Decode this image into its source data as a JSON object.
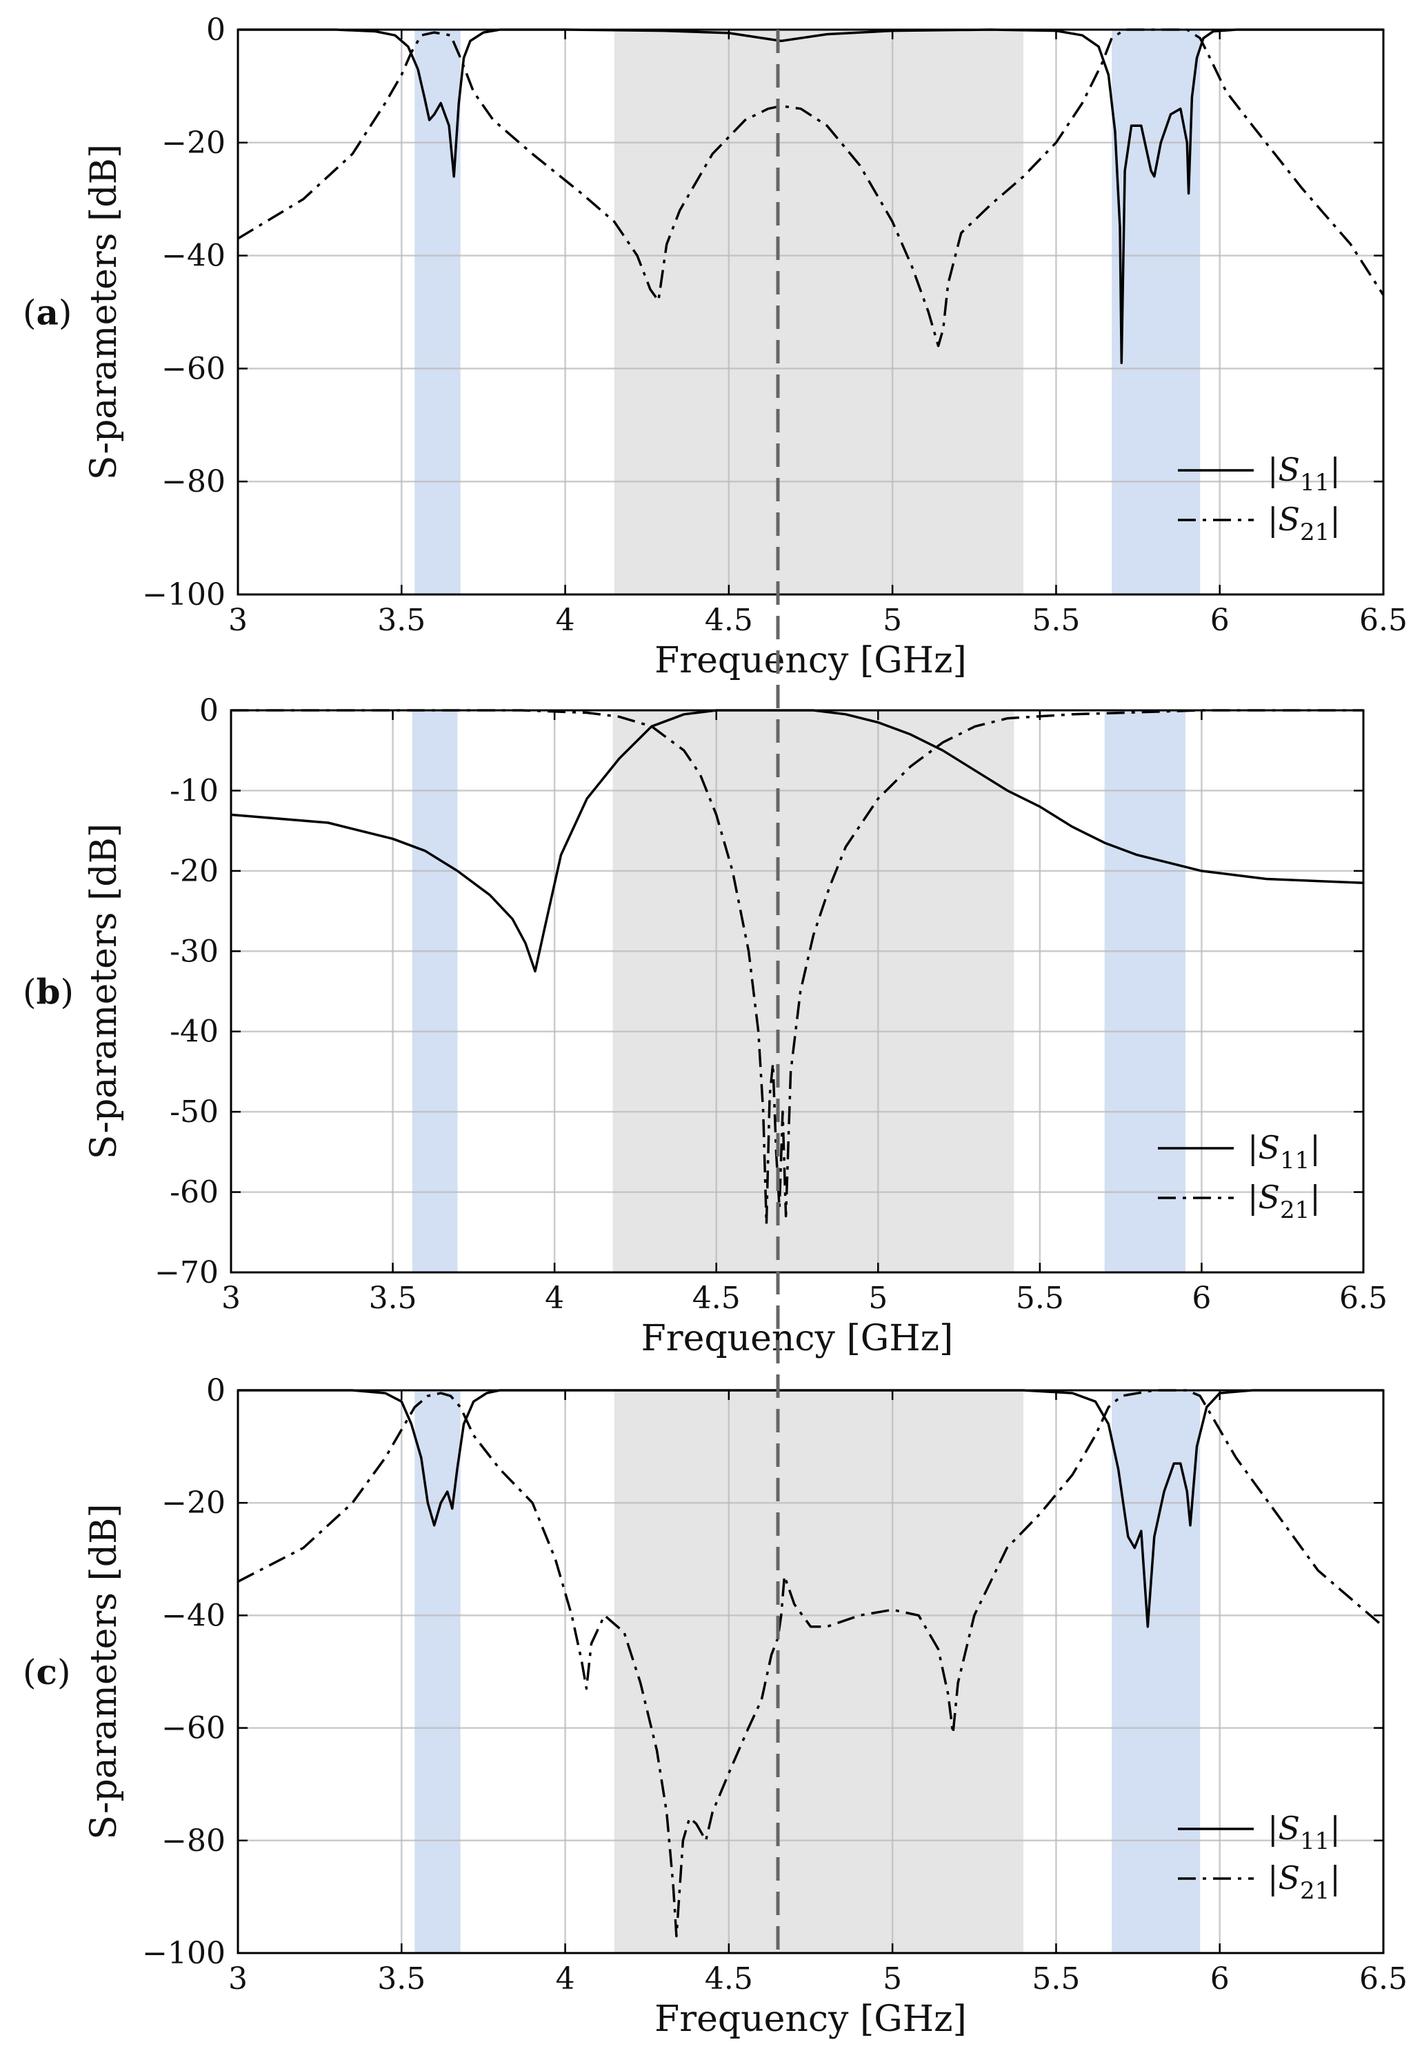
{
  "figure": {
    "shared_x_axis_label": "Frequency [GHz]",
    "shared_y_axis_label": "S-parameters [dB]",
    "band_colors": {
      "passband": "#e5e5e5",
      "notch": "#d3dff2",
      "marker": "#666666"
    }
  },
  "chart_data": [
    {
      "type": "line",
      "panel_label": "(a)",
      "xlabel": "Frequency [GHz]",
      "ylabel": "S-parameters [dB]",
      "xlim": [
        3,
        6.5
      ],
      "ylim": [
        -100,
        0
      ],
      "xticks": [
        3,
        3.5,
        4,
        4.5,
        5,
        5.5,
        6,
        6.5
      ],
      "xtick_labels": [
        "3",
        "3.5",
        "4",
        "4.5",
        "5",
        "5.5",
        "6",
        "6.5"
      ],
      "yticks": [
        0,
        -20,
        -40,
        -60,
        -80,
        -100
      ],
      "ytick_labels": [
        "0",
        "−20",
        "−40",
        "−60",
        "−80",
        "−100"
      ],
      "grid": true,
      "legend": {
        "position": "bottom-right",
        "entries": [
          "|S11|",
          "|S21|"
        ],
        "main": [
          "|S",
          "|S"
        ],
        "sub": [
          "11",
          "21"
        ],
        "tail": [
          "|",
          "|"
        ]
      },
      "shaded_regions": [
        {
          "x0": 3.54,
          "x1": 3.68,
          "kind": "notch"
        },
        {
          "x0": 4.15,
          "x1": 5.4,
          "kind": "passband"
        },
        {
          "x0": 5.67,
          "x1": 5.94,
          "kind": "notch"
        }
      ],
      "vline": 4.66,
      "series": [
        {
          "name": "|S11|",
          "style": "solid",
          "x": [
            3.0,
            3.3,
            3.42,
            3.48,
            3.52,
            3.55,
            3.57,
            3.585,
            3.6,
            3.62,
            3.645,
            3.66,
            3.675,
            3.69,
            3.71,
            3.75,
            3.8,
            4.0,
            4.3,
            4.5,
            4.66,
            4.8,
            5.0,
            5.3,
            5.5,
            5.58,
            5.63,
            5.66,
            5.68,
            5.695,
            5.7,
            5.71,
            5.73,
            5.76,
            5.79,
            5.8,
            5.82,
            5.85,
            5.88,
            5.9,
            5.905,
            5.915,
            5.93,
            5.95,
            5.98,
            6.05,
            6.5
          ],
          "y": [
            0,
            0,
            -0.3,
            -1,
            -3,
            -7,
            -12,
            -16,
            -15,
            -13,
            -17,
            -26,
            -13,
            -5,
            -2,
            -0.5,
            0,
            0,
            -0.2,
            -0.6,
            -2,
            -0.8,
            -0.2,
            0,
            -0.2,
            -1,
            -3,
            -8,
            -18,
            -35,
            -59,
            -25,
            -17,
            -17,
            -25,
            -26,
            -20,
            -15,
            -14,
            -20,
            -29,
            -12,
            -5,
            -1.5,
            -0.3,
            0,
            0
          ]
        },
        {
          "name": "|S21|",
          "style": "dashdot",
          "x": [
            3.0,
            3.2,
            3.35,
            3.45,
            3.5,
            3.53,
            3.56,
            3.6,
            3.65,
            3.68,
            3.72,
            3.78,
            3.9,
            4.05,
            4.15,
            4.22,
            4.26,
            4.285,
            4.31,
            4.35,
            4.45,
            4.55,
            4.62,
            4.66,
            4.72,
            4.8,
            4.9,
            5.0,
            5.06,
            5.11,
            5.14,
            5.155,
            5.17,
            5.21,
            5.3,
            5.4,
            5.5,
            5.58,
            5.64,
            5.67,
            5.71,
            5.8,
            5.9,
            5.94,
            5.97,
            6.02,
            6.1,
            6.25,
            6.4,
            6.5
          ],
          "y": [
            -37,
            -30,
            -22,
            -13,
            -8,
            -4,
            -1,
            -0.5,
            -1,
            -5,
            -11,
            -16,
            -22,
            -29,
            -34,
            -40,
            -46,
            -48,
            -38,
            -32,
            -22,
            -16,
            -14,
            -13.5,
            -14,
            -17,
            -24,
            -34,
            -42,
            -50,
            -56,
            -53,
            -45,
            -36,
            -31,
            -26,
            -20,
            -13,
            -6,
            -1.5,
            0,
            0,
            0,
            -1.5,
            -5,
            -11,
            -17,
            -28,
            -38,
            -47
          ]
        }
      ]
    },
    {
      "type": "line",
      "panel_label": "(b)",
      "xlabel": "Frequency [GHz]",
      "ylabel": "S-parameters [dB]",
      "xlim": [
        3,
        6.5
      ],
      "ylim": [
        -70,
        0
      ],
      "xticks": [
        3,
        3.5,
        4,
        4.5,
        5,
        5.5,
        6,
        6.5
      ],
      "xtick_labels": [
        "3",
        "3.5",
        "4",
        "4.5",
        "5",
        "5.5",
        "6",
        "6.5"
      ],
      "yticks": [
        0,
        -10,
        -20,
        -30,
        -40,
        -50,
        -60,
        -70
      ],
      "ytick_labels": [
        "0",
        "-10",
        "-20",
        "-30",
        "-40",
        "-50",
        "-60",
        "−70"
      ],
      "grid": true,
      "legend": {
        "position": "bottom-right",
        "entries": [
          "|S11|",
          "|S21|"
        ],
        "main": [
          "|S",
          "|S"
        ],
        "sub": [
          "11",
          "21"
        ],
        "tail": [
          "|",
          "|"
        ]
      },
      "shaded_regions": [
        {
          "x0": 3.56,
          "x1": 3.7,
          "kind": "notch"
        },
        {
          "x0": 4.18,
          "x1": 5.42,
          "kind": "passband"
        },
        {
          "x0": 5.7,
          "x1": 5.95,
          "kind": "notch"
        }
      ],
      "vline": 4.68,
      "series": [
        {
          "name": "|S11|",
          "style": "solid",
          "x": [
            3.0,
            3.3,
            3.5,
            3.6,
            3.7,
            3.8,
            3.87,
            3.91,
            3.94,
            3.97,
            4.02,
            4.1,
            4.2,
            4.3,
            4.4,
            4.5,
            4.6,
            4.8,
            4.9,
            5.0,
            5.1,
            5.2,
            5.3,
            5.4,
            5.5,
            5.6,
            5.7,
            5.8,
            5.9,
            6.0,
            6.2,
            6.5
          ],
          "y": [
            -13,
            -14,
            -16,
            -17.5,
            -20,
            -23,
            -26,
            -29,
            -32.5,
            -27,
            -18,
            -11,
            -6,
            -2,
            -0.5,
            0,
            0,
            0,
            -0.5,
            -1.5,
            -3,
            -5,
            -7.5,
            -10,
            -12,
            -14.5,
            -16.5,
            -18,
            -19,
            -20,
            -21,
            -21.5
          ]
        },
        {
          "name": "|S21|",
          "style": "dashdot",
          "x": [
            3.0,
            3.5,
            3.9,
            4.1,
            4.2,
            4.3,
            4.4,
            4.45,
            4.5,
            4.55,
            4.6,
            4.63,
            4.645,
            4.655,
            4.665,
            4.675,
            4.685,
            4.695,
            4.705,
            4.715,
            4.73,
            4.76,
            4.8,
            4.85,
            4.9,
            5.0,
            5.1,
            5.2,
            5.3,
            5.4,
            5.6,
            6.0,
            6.5
          ],
          "y": [
            0,
            0,
            0,
            -0.3,
            -0.8,
            -2,
            -5,
            -8,
            -13,
            -20,
            -30,
            -40,
            -50,
            -64,
            -48,
            -44,
            -55,
            -62,
            -50,
            -63,
            -45,
            -35,
            -28,
            -22,
            -17,
            -11,
            -7,
            -4,
            -2,
            -1,
            -0.5,
            0,
            0
          ]
        }
      ]
    },
    {
      "type": "line",
      "panel_label": "(c)",
      "xlabel": "Frequency [GHz]",
      "ylabel": "S-parameters [dB]",
      "xlim": [
        3,
        6.5
      ],
      "ylim": [
        -100,
        0
      ],
      "xticks": [
        3,
        3.5,
        4,
        4.5,
        5,
        5.5,
        6,
        6.5
      ],
      "xtick_labels": [
        "3",
        "3.5",
        "4",
        "4.5",
        "5",
        "5.5",
        "6",
        "6.5"
      ],
      "yticks": [
        0,
        -20,
        -40,
        -60,
        -80,
        -100
      ],
      "ytick_labels": [
        "0",
        "−20",
        "−40",
        "−60",
        "−80",
        "−100"
      ],
      "grid": true,
      "legend": {
        "position": "bottom-right",
        "entries": [
          "|S11|",
          "|S21|"
        ],
        "main": [
          "|S",
          "|S"
        ],
        "sub": [
          "11",
          "21"
        ],
        "tail": [
          "|",
          "|"
        ]
      },
      "shaded_regions": [
        {
          "x0": 3.54,
          "x1": 3.68,
          "kind": "notch"
        },
        {
          "x0": 4.15,
          "x1": 5.4,
          "kind": "passband"
        },
        {
          "x0": 5.67,
          "x1": 5.94,
          "kind": "notch"
        }
      ],
      "vline": 4.65,
      "series": [
        {
          "name": "|S11|",
          "style": "solid",
          "x": [
            3.0,
            3.35,
            3.45,
            3.5,
            3.53,
            3.56,
            3.58,
            3.6,
            3.62,
            3.64,
            3.655,
            3.67,
            3.69,
            3.72,
            3.76,
            3.8,
            4.0,
            4.5,
            5.0,
            5.4,
            5.55,
            5.62,
            5.66,
            5.69,
            5.72,
            5.74,
            5.76,
            5.78,
            5.8,
            5.83,
            5.86,
            5.88,
            5.9,
            5.91,
            5.93,
            5.96,
            6.0,
            6.1,
            6.5
          ],
          "y": [
            0,
            0,
            -0.5,
            -2,
            -6,
            -12,
            -20,
            -24,
            -20,
            -18,
            -21,
            -14,
            -6,
            -2,
            -0.5,
            0,
            0,
            0,
            0,
            0,
            -0.5,
            -2,
            -6,
            -14,
            -26,
            -28,
            -25,
            -42,
            -26,
            -18,
            -13,
            -13,
            -18,
            -24,
            -10,
            -3,
            -0.5,
            0,
            0
          ]
        },
        {
          "name": "|S21|",
          "style": "dashdot",
          "x": [
            3.0,
            3.2,
            3.35,
            3.45,
            3.5,
            3.54,
            3.58,
            3.62,
            3.65,
            3.68,
            3.72,
            3.8,
            3.9,
            3.97,
            4.02,
            4.05,
            4.065,
            4.08,
            4.12,
            4.18,
            4.23,
            4.28,
            4.31,
            4.33,
            4.34,
            4.36,
            4.38,
            4.4,
            4.43,
            4.45,
            4.5,
            4.56,
            4.6,
            4.63,
            4.65,
            4.66,
            4.67,
            4.7,
            4.75,
            4.8,
            4.9,
            5.0,
            5.08,
            5.14,
            5.17,
            5.185,
            5.2,
            5.25,
            5.35,
            5.45,
            5.55,
            5.62,
            5.66,
            5.7,
            5.8,
            5.9,
            5.94,
            5.98,
            6.05,
            6.15,
            6.3,
            6.5
          ],
          "y": [
            -34,
            -28,
            -20,
            -12,
            -7,
            -3,
            -1,
            -0.5,
            -1,
            -3,
            -8,
            -14,
            -20,
            -30,
            -40,
            -48,
            -53,
            -45,
            -40,
            -43,
            -52,
            -64,
            -75,
            -88,
            -97,
            -80,
            -76,
            -77,
            -80,
            -75,
            -68,
            -60,
            -55,
            -47,
            -44,
            -40,
            -33,
            -38,
            -42,
            -42,
            -40,
            -39,
            -40,
            -46,
            -54,
            -61,
            -52,
            -40,
            -28,
            -22,
            -15,
            -8,
            -3,
            -1,
            0,
            0,
            -1,
            -5,
            -12,
            -20,
            -32,
            -42
          ]
        }
      ]
    }
  ]
}
